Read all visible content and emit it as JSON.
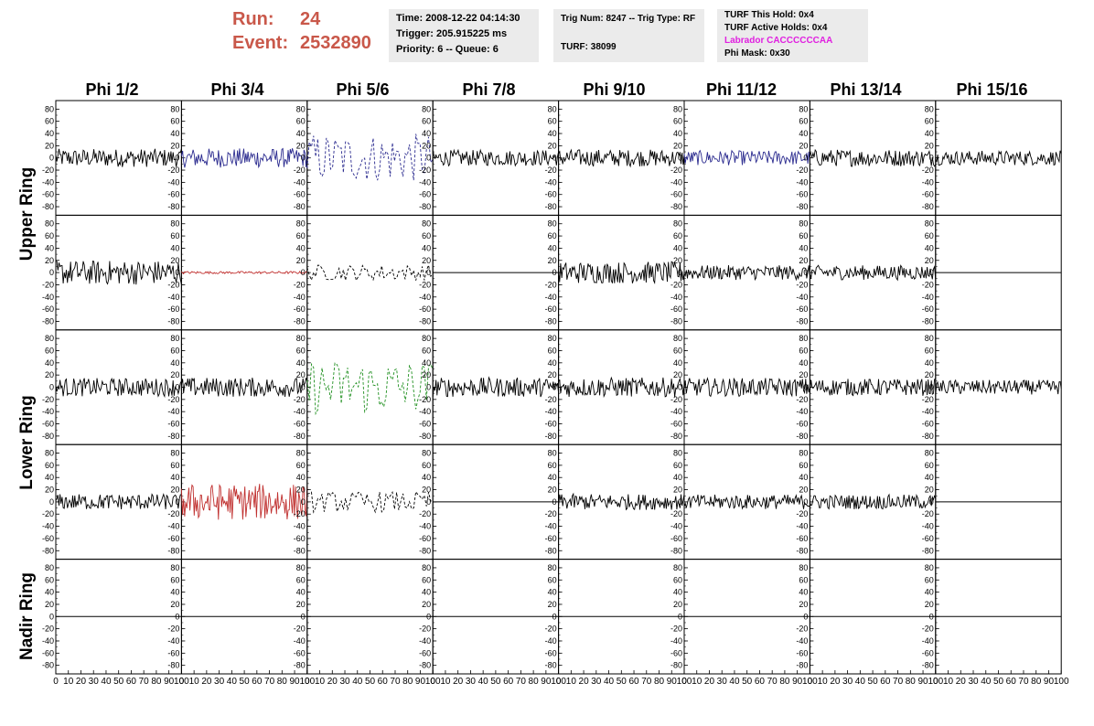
{
  "header": {
    "run_label": "Run:",
    "run_value": "24",
    "event_label": "Event:",
    "event_value": "2532890",
    "time": "Time: 2008-12-22 04:14:30",
    "trigger": "Trigger: 205.915225 ms",
    "priority": "Priority: 6 -- Queue: 6",
    "trig_num": "Trig Num: 8247 -- Trig Type: RF",
    "turf": "TURF: 38099",
    "turf_this_hold": "TURF This Hold: 0x4",
    "turf_active_holds": "TURF Active Holds: 0x4",
    "labrador": "Labrador CACCCCCCAA",
    "phi_mask": "Phi Mask: 0x30"
  },
  "columns": [
    "Phi 1/2",
    "Phi 3/4",
    "Phi 5/6",
    "Phi 7/8",
    "Phi 9/10",
    "Phi 11/12",
    "Phi 13/14",
    "Phi 15/16"
  ],
  "rows": [
    "Upper Ring",
    "Lower Ring",
    "Nadir Ring"
  ],
  "chart_data": {
    "type": "line",
    "xlim": [
      0,
      100
    ],
    "ylim": [
      -85,
      85
    ],
    "x_ticks": [
      0,
      10,
      20,
      30,
      40,
      50,
      60,
      70,
      80,
      90,
      100
    ],
    "y_ticks": [
      80,
      60,
      40,
      20,
      0,
      -20,
      -40,
      -60,
      -80
    ],
    "colors": {
      "black": "#000000",
      "blue": "#2b2b8f",
      "red": "#c0302f",
      "green": "#209020"
    },
    "panels": [
      [
        {
          "style": "solid",
          "color": "#000000",
          "amp": 15,
          "samples": 120
        },
        {
          "style": "solid",
          "color": "#2b2b8f",
          "amp": 16,
          "samples": 120
        },
        {
          "style": "dashed",
          "color": "#2b2b8f",
          "amp": 40,
          "samples": 60
        },
        {
          "style": "solid",
          "color": "#000000",
          "amp": 13,
          "samples": 120
        },
        {
          "style": "solid",
          "color": "#000000",
          "amp": 14,
          "samples": 120
        },
        {
          "style": "solid",
          "color": "#2b2b8f",
          "amp": 12,
          "samples": 120
        },
        {
          "style": "solid",
          "color": "#000000",
          "amp": 14,
          "samples": 120
        },
        {
          "style": "solid",
          "color": "#000000",
          "amp": 12,
          "samples": 120
        }
      ],
      [
        {
          "style": "solid",
          "color": "#000000",
          "amp": 20,
          "samples": 120
        },
        {
          "style": "solid",
          "color": "#c0302f",
          "amp": 2,
          "samples": 120
        },
        {
          "style": "dashed",
          "color": "#000000",
          "amp": 13,
          "samples": 60
        },
        {
          "style": "flat",
          "color": "#000000",
          "amp": 0,
          "samples": 2
        },
        {
          "style": "solid",
          "color": "#000000",
          "amp": 18,
          "samples": 120
        },
        {
          "style": "solid",
          "color": "#000000",
          "amp": 12,
          "samples": 120
        },
        {
          "style": "solid",
          "color": "#000000",
          "amp": 12,
          "samples": 120
        },
        {
          "style": "flat",
          "color": "#000000",
          "amp": 0,
          "samples": 2
        }
      ],
      [
        {
          "style": "solid",
          "color": "#000000",
          "amp": 15,
          "samples": 120
        },
        {
          "style": "solid",
          "color": "#000000",
          "amp": 16,
          "samples": 120
        },
        {
          "style": "dashed",
          "color": "#209020",
          "amp": 45,
          "samples": 60
        },
        {
          "style": "solid",
          "color": "#000000",
          "amp": 16,
          "samples": 120
        },
        {
          "style": "solid",
          "color": "#000000",
          "amp": 16,
          "samples": 120
        },
        {
          "style": "solid",
          "color": "#000000",
          "amp": 15,
          "samples": 120
        },
        {
          "style": "solid",
          "color": "#000000",
          "amp": 14,
          "samples": 120
        },
        {
          "style": "solid",
          "color": "#000000",
          "amp": 12,
          "samples": 120
        }
      ],
      [
        {
          "style": "solid",
          "color": "#000000",
          "amp": 13,
          "samples": 120
        },
        {
          "style": "solid",
          "color": "#c0302f",
          "amp": 30,
          "samples": 120
        },
        {
          "style": "dashed",
          "color": "#000000",
          "amp": 17,
          "samples": 60
        },
        {
          "style": "flat",
          "color": "#000000",
          "amp": 0,
          "samples": 2
        },
        {
          "style": "solid",
          "color": "#000000",
          "amp": 13,
          "samples": 120
        },
        {
          "style": "solid",
          "color": "#000000",
          "amp": 12,
          "samples": 120
        },
        {
          "style": "solid",
          "color": "#000000",
          "amp": 12,
          "samples": 120
        },
        {
          "style": "flat",
          "color": "#000000",
          "amp": 0,
          "samples": 2
        }
      ],
      [
        {
          "style": "flat",
          "color": "#000000",
          "amp": 0,
          "samples": 2
        },
        {
          "style": "flat",
          "color": "#000000",
          "amp": 0,
          "samples": 2
        },
        {
          "style": "flat",
          "color": "#000000",
          "amp": 0,
          "samples": 2
        },
        {
          "style": "flat",
          "color": "#000000",
          "amp": 0,
          "samples": 2
        },
        {
          "style": "flat",
          "color": "#000000",
          "amp": 0,
          "samples": 2
        },
        {
          "style": "flat",
          "color": "#000000",
          "amp": 0,
          "samples": 2
        },
        {
          "style": "flat",
          "color": "#000000",
          "amp": 0,
          "samples": 2
        },
        {
          "style": "flat",
          "color": "#000000",
          "amp": 0,
          "samples": 2
        }
      ]
    ]
  }
}
